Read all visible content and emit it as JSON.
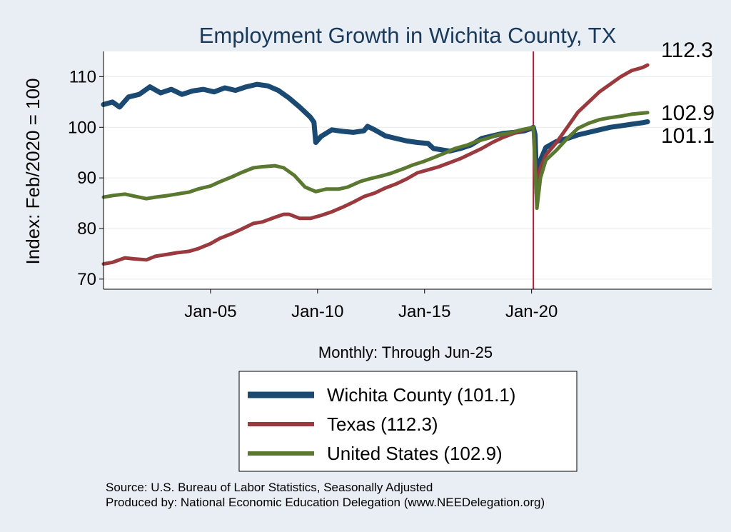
{
  "chart_data": {
    "type": "line",
    "title": "Employment Growth in Wichita  County, TX",
    "ylabel": "Index: Feb/2020 = 100",
    "xlabel": "Monthly: Through Jun-25",
    "x_ticks": [
      "Jan-05",
      "Jan-10",
      "Jan-15",
      "Jan-20"
    ],
    "y_ticks": [
      70,
      80,
      90,
      100,
      110
    ],
    "xlim": [
      "2000-01",
      "2028-06"
    ],
    "ylim": [
      68,
      115
    ],
    "grid": true,
    "vline": "2020-02",
    "legend_position": "bottom",
    "series": [
      {
        "name": "Wichita  County (101.1)",
        "color": "#1a4a72",
        "end_label": "101.1",
        "points": [
          [
            "2000-01",
            104.5
          ],
          [
            "2000-06",
            105.0
          ],
          [
            "2000-10",
            104.0
          ],
          [
            "2001-03",
            106.0
          ],
          [
            "2001-09",
            106.5
          ],
          [
            "2002-03",
            108.0
          ],
          [
            "2002-09",
            106.8
          ],
          [
            "2003-03",
            107.5
          ],
          [
            "2003-09",
            106.5
          ],
          [
            "2004-03",
            107.2
          ],
          [
            "2004-09",
            107.5
          ],
          [
            "2005-03",
            107.0
          ],
          [
            "2005-09",
            107.8
          ],
          [
            "2006-03",
            107.3
          ],
          [
            "2006-09",
            108.0
          ],
          [
            "2007-03",
            108.5
          ],
          [
            "2007-09",
            108.2
          ],
          [
            "2008-03",
            107.3
          ],
          [
            "2008-09",
            105.8
          ],
          [
            "2009-03",
            104.0
          ],
          [
            "2009-09",
            102.0
          ],
          [
            "2009-11",
            101.0
          ],
          [
            "2009-12",
            97.0
          ],
          [
            "2010-03",
            98.2
          ],
          [
            "2010-09",
            99.5
          ],
          [
            "2011-03",
            99.2
          ],
          [
            "2011-09",
            99.0
          ],
          [
            "2012-03",
            99.3
          ],
          [
            "2012-05",
            100.2
          ],
          [
            "2012-09",
            99.5
          ],
          [
            "2013-03",
            98.3
          ],
          [
            "2013-09",
            97.8
          ],
          [
            "2014-03",
            97.3
          ],
          [
            "2014-09",
            97.0
          ],
          [
            "2015-03",
            96.8
          ],
          [
            "2015-06",
            95.8
          ],
          [
            "2016-03",
            95.3
          ],
          [
            "2016-09",
            95.8
          ],
          [
            "2017-03",
            96.5
          ],
          [
            "2017-09",
            97.8
          ],
          [
            "2018-03",
            98.3
          ],
          [
            "2018-09",
            98.8
          ],
          [
            "2019-03",
            99.0
          ],
          [
            "2019-09",
            99.3
          ],
          [
            "2020-01",
            99.8
          ],
          [
            "2020-02",
            100.0
          ],
          [
            "2020-03",
            98.5
          ],
          [
            "2020-04",
            87.0
          ],
          [
            "2020-06",
            93.5
          ],
          [
            "2020-09",
            96.0
          ],
          [
            "2021-03",
            97.2
          ],
          [
            "2021-09",
            97.8
          ],
          [
            "2022-03",
            98.5
          ],
          [
            "2022-09",
            99.0
          ],
          [
            "2023-03",
            99.5
          ],
          [
            "2023-09",
            100.0
          ],
          [
            "2024-03",
            100.3
          ],
          [
            "2024-09",
            100.6
          ],
          [
            "2025-03",
            100.9
          ],
          [
            "2025-06",
            101.1
          ]
        ]
      },
      {
        "name": "Texas (112.3)",
        "color": "#9a3a3e",
        "end_label": "112.3",
        "points": [
          [
            "2000-01",
            73.0
          ],
          [
            "2000-06",
            73.3
          ],
          [
            "2001-01",
            74.2
          ],
          [
            "2001-06",
            74.0
          ],
          [
            "2002-01",
            73.8
          ],
          [
            "2002-06",
            74.5
          ],
          [
            "2003-01",
            74.9
          ],
          [
            "2003-06",
            75.2
          ],
          [
            "2004-01",
            75.5
          ],
          [
            "2004-06",
            76.0
          ],
          [
            "2005-01",
            77.0
          ],
          [
            "2005-06",
            78.0
          ],
          [
            "2006-01",
            79.0
          ],
          [
            "2006-06",
            79.8
          ],
          [
            "2007-01",
            81.0
          ],
          [
            "2007-06",
            81.3
          ],
          [
            "2008-01",
            82.2
          ],
          [
            "2008-06",
            82.8
          ],
          [
            "2008-09",
            82.8
          ],
          [
            "2009-03",
            82.0
          ],
          [
            "2009-09",
            82.0
          ],
          [
            "2010-03",
            82.6
          ],
          [
            "2010-09",
            83.3
          ],
          [
            "2011-03",
            84.2
          ],
          [
            "2011-09",
            85.2
          ],
          [
            "2012-03",
            86.3
          ],
          [
            "2012-09",
            87.0
          ],
          [
            "2013-03",
            88.0
          ],
          [
            "2013-09",
            88.8
          ],
          [
            "2014-03",
            89.8
          ],
          [
            "2014-09",
            91.0
          ],
          [
            "2015-03",
            91.6
          ],
          [
            "2015-09",
            92.2
          ],
          [
            "2016-03",
            93.0
          ],
          [
            "2016-09",
            93.8
          ],
          [
            "2017-03",
            94.8
          ],
          [
            "2017-09",
            95.8
          ],
          [
            "2018-03",
            97.0
          ],
          [
            "2018-09",
            98.0
          ],
          [
            "2019-03",
            98.8
          ],
          [
            "2019-09",
            99.5
          ],
          [
            "2020-02",
            100.0
          ],
          [
            "2020-04",
            87.0
          ],
          [
            "2020-06",
            92.0
          ],
          [
            "2020-09",
            94.5
          ],
          [
            "2021-03",
            97.0
          ],
          [
            "2021-09",
            100.0
          ],
          [
            "2022-03",
            103.0
          ],
          [
            "2022-09",
            105.0
          ],
          [
            "2023-03",
            107.0
          ],
          [
            "2023-09",
            108.5
          ],
          [
            "2024-03",
            110.0
          ],
          [
            "2024-09",
            111.2
          ],
          [
            "2025-03",
            111.8
          ],
          [
            "2025-06",
            112.3
          ]
        ]
      },
      {
        "name": "United States (102.9)",
        "color": "#5a7830",
        "end_label": "102.9",
        "points": [
          [
            "2000-01",
            86.2
          ],
          [
            "2000-06",
            86.5
          ],
          [
            "2001-01",
            86.8
          ],
          [
            "2001-06",
            86.4
          ],
          [
            "2002-01",
            85.9
          ],
          [
            "2002-06",
            86.2
          ],
          [
            "2003-01",
            86.5
          ],
          [
            "2003-06",
            86.8
          ],
          [
            "2004-01",
            87.2
          ],
          [
            "2004-06",
            87.8
          ],
          [
            "2005-01",
            88.4
          ],
          [
            "2005-06",
            89.2
          ],
          [
            "2006-01",
            90.2
          ],
          [
            "2006-06",
            91.0
          ],
          [
            "2007-01",
            92.0
          ],
          [
            "2007-06",
            92.2
          ],
          [
            "2008-01",
            92.4
          ],
          [
            "2008-06",
            92.0
          ],
          [
            "2008-12",
            90.5
          ],
          [
            "2009-06",
            88.2
          ],
          [
            "2009-12",
            87.3
          ],
          [
            "2010-06",
            87.8
          ],
          [
            "2011-01",
            87.8
          ],
          [
            "2011-06",
            88.2
          ],
          [
            "2012-01",
            89.3
          ],
          [
            "2012-06",
            89.8
          ],
          [
            "2013-01",
            90.4
          ],
          [
            "2013-06",
            90.9
          ],
          [
            "2014-01",
            91.8
          ],
          [
            "2014-06",
            92.5
          ],
          [
            "2015-01",
            93.3
          ],
          [
            "2015-06",
            94.0
          ],
          [
            "2016-01",
            95.0
          ],
          [
            "2016-06",
            95.8
          ],
          [
            "2017-01",
            96.5
          ],
          [
            "2017-06",
            97.2
          ],
          [
            "2018-01",
            97.9
          ],
          [
            "2018-06",
            98.5
          ],
          [
            "2019-01",
            98.9
          ],
          [
            "2019-06",
            99.4
          ],
          [
            "2020-02",
            100.0
          ],
          [
            "2020-04",
            84.0
          ],
          [
            "2020-06",
            90.0
          ],
          [
            "2020-09",
            93.5
          ],
          [
            "2021-03",
            95.5
          ],
          [
            "2021-09",
            97.8
          ],
          [
            "2022-03",
            99.8
          ],
          [
            "2022-09",
            100.8
          ],
          [
            "2023-03",
            101.5
          ],
          [
            "2023-09",
            101.9
          ],
          [
            "2024-03",
            102.2
          ],
          [
            "2024-09",
            102.6
          ],
          [
            "2025-03",
            102.8
          ],
          [
            "2025-06",
            102.9
          ]
        ]
      }
    ]
  },
  "source_note": "Source: U.S. Bureau of Labor Statistics, Seasonally Adjusted",
  "produced_note": "Produced by: National Economic Education Delegation (www.NEEDelegation.org)"
}
